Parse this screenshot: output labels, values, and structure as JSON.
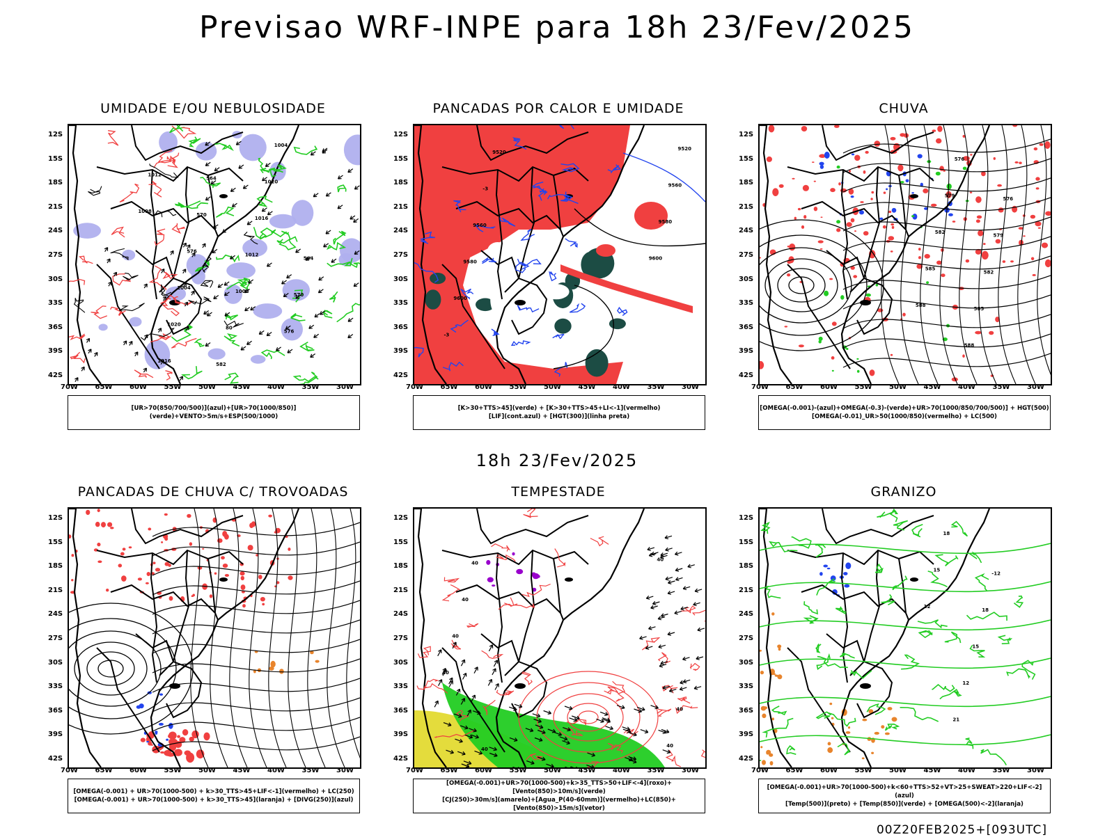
{
  "title": "Previsao WRF-INPE  para 18h 23/Fev/2025",
  "mid_title": "18h 23/Fev/2025",
  "footer": "00Z20FEB2025+[093UTC]",
  "lat_ticks": [
    "12S",
    "15S",
    "18S",
    "21S",
    "24S",
    "27S",
    "30S",
    "33S",
    "36S",
    "39S",
    "42S"
  ],
  "lon_ticks": [
    "70W",
    "65W",
    "60W",
    "55W",
    "50W",
    "45W",
    "40W",
    "35W",
    "30W"
  ],
  "colors": {
    "red": "#f04040",
    "green": "#22cc22",
    "blue": "#2244ee",
    "lavender": "#b0b0ee",
    "darkgreen": "#1c4c44",
    "yellow": "#e4dc3c",
    "orange": "#e8842c",
    "purple": "#9900cc"
  },
  "panels": [
    {
      "name": "umidade",
      "title": "UMIDADE E/OU NEBULOSIDADE",
      "legend": [
        "[UR>70(850/700/500)](azul)+[UR>70(1000/850)](verde)+VENTO>5m/s+ESP(500/1000)"
      ],
      "labels": [
        "1008",
        "1012",
        "1016",
        "1020",
        "1004",
        "576",
        "570",
        "564",
        "582",
        "80",
        "1008",
        "1012",
        "1016",
        "1020",
        "1004",
        "576",
        "570",
        "564"
      ]
    },
    {
      "name": "pancadas-calor",
      "title": "PANCADAS POR CALOR E UMIDADE",
      "legend": [
        "[K>30+TTS>45](verde) + [K>30+TTS>45+LI<-1](vermelho)",
        "[LIF](cont.azul) + [HGT(300)](linha preta)"
      ],
      "labels": [
        "9600",
        "9580",
        "9560",
        "9520",
        "-3",
        "9600",
        "9580",
        "9560",
        "-3",
        "9520"
      ]
    },
    {
      "name": "chuva",
      "title": "CHUVA",
      "legend": [
        "[OMEGA(-0.001)-(azul)+OMEGA(-0.3)-(verde)+UR>70(1000/850/700/500)] + HGT(500)",
        "[OMEGA(-0.01)_UR>50(1000/850)(vermelho) + LC(500)"
      ],
      "labels": [
        "588",
        "585",
        "582",
        "579",
        "576",
        "588",
        "585",
        "582",
        "579",
        "576"
      ]
    },
    {
      "name": "trovoadas",
      "title": "PANCADAS DE CHUVA C/ TROVOADAS",
      "legend": [
        "[OMEGA(-0.001) + UR>70(1000-500) + k>30_TTS>45+LIF<-1](vermelho) + LC(250)",
        "[OMEGA(-0.001) + UR>70(1000-500) + k>30_TTS>45](laranja) + [DIVG(250)](azul)"
      ],
      "labels": []
    },
    {
      "name": "tempestade",
      "title": "TEMPESTADE",
      "legend": [
        "[OMEGA(-0.001)+UR>70(1000-500)+k>35_TTS>50+LIF<-4](roxo)+[Vento(850)>10m/s](verde)",
        "[CJ(250)>30m/s](amarelo)+[Agua_P(40-60mm)](vermelho)+LC(850)+[Vento(850)>15m/s](vetor)"
      ],
      "labels": [
        "40",
        "40",
        "40",
        "40",
        "40",
        "40",
        "40",
        "40"
      ]
    },
    {
      "name": "granizo",
      "title": "GRANIZO",
      "legend": [
        "[OMEGA(-0.001)+UR>70(1000-500)+k<60+TTS>52+VT>25+SWEAT>220+LIF<-2](azul)",
        "[Temp(500)](preto) + [Temp(850)](verde) + [OMEGA(500)<-2](laranja)"
      ],
      "labels": [
        "12",
        "15",
        "18",
        "21",
        "12",
        "15",
        "18",
        "-12"
      ]
    }
  ]
}
